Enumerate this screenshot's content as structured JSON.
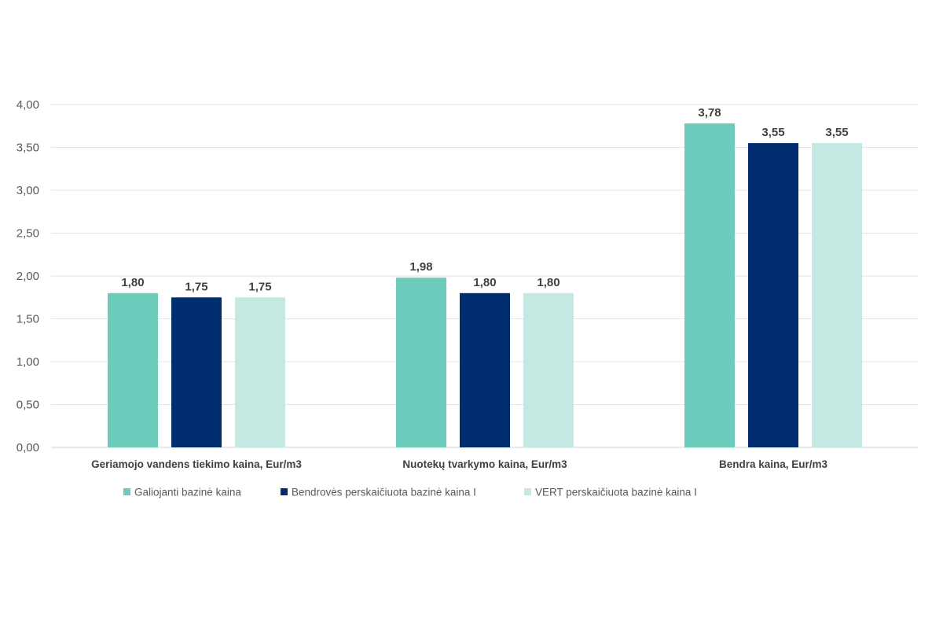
{
  "chart_data": {
    "type": "bar",
    "title": "",
    "xlabel": "",
    "ylabel": "",
    "categories": [
      "Geriamojo vandens tiekimo kaina, Eur/m3",
      "Nuotekų tvarkymo kaina, Eur/m3",
      "Bendra kaina, Eur/m3"
    ],
    "series": [
      {
        "name": "Galiojanti bazinė kaina",
        "color": "#6bccbb",
        "values": [
          1.8,
          1.98,
          3.78
        ],
        "labels": [
          "1,80",
          "1,98",
          "3,78"
        ]
      },
      {
        "name": "Bendrovės perskaičiuota bazinė kaina I",
        "color": "#002d6e",
        "values": [
          1.75,
          1.8,
          3.55
        ],
        "labels": [
          "1,75",
          "1,80",
          "3,55"
        ]
      },
      {
        "name": "VERT perskaičiuota bazinė kaina I",
        "color": "#c3e9e2",
        "values": [
          1.75,
          1.8,
          3.55
        ],
        "labels": [
          "1,75",
          "1,80",
          "3,55"
        ]
      }
    ],
    "ylim": [
      0,
      4
    ],
    "yticks": [
      0,
      0.5,
      1.0,
      1.5,
      2.0,
      2.5,
      3.0,
      3.5,
      4.0
    ],
    "ytick_labels": [
      "0,00",
      "0,50",
      "1,00",
      "1,50",
      "2,00",
      "2,50",
      "3,00",
      "3,50",
      "4,00"
    ],
    "grid": true,
    "legend_position": "bottom"
  }
}
